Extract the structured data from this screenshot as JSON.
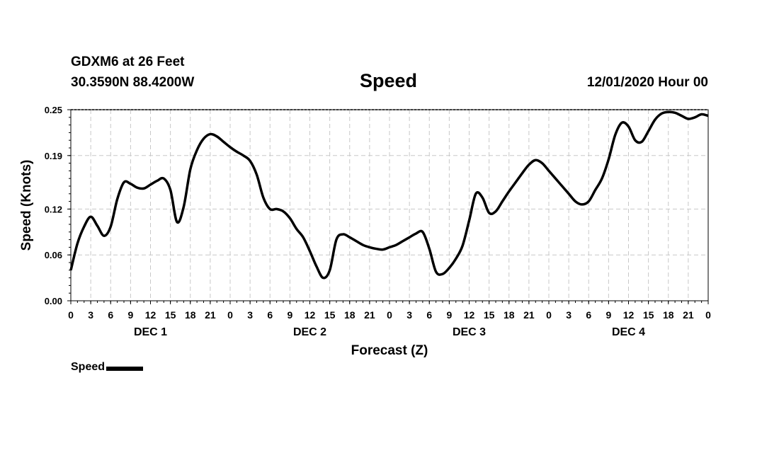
{
  "header": {
    "station": "GDXM6 at 26 Feet",
    "coords": "30.3590N 88.4200W",
    "title": "Speed",
    "datetime": "12/01/2020 Hour 00"
  },
  "legend": {
    "label": "Speed"
  },
  "chart_data": {
    "type": "line",
    "title": "Speed",
    "xlabel": "Forecast (Z)",
    "ylabel": "Speed (Knots)",
    "ylim": [
      0,
      0.25
    ],
    "yticks": [
      "0.00",
      "0.06",
      "0.12",
      "0.19",
      "0.25"
    ],
    "xlim": [
      0,
      96
    ],
    "xtick_labels": [
      "0",
      "3",
      "6",
      "9",
      "12",
      "15",
      "18",
      "21",
      "0",
      "3",
      "6",
      "9",
      "12",
      "15",
      "18",
      "21",
      "0",
      "3",
      "6",
      "9",
      "12",
      "15",
      "18",
      "21",
      "0",
      "3",
      "6",
      "9",
      "12",
      "15",
      "18",
      "21",
      "0"
    ],
    "day_labels": [
      {
        "label": "DEC 1",
        "hour": 12
      },
      {
        "label": "DEC 2",
        "hour": 36
      },
      {
        "label": "DEC 3",
        "hour": 60
      },
      {
        "label": "DEC 4",
        "hour": 84
      }
    ],
    "grid": true,
    "legend_position": "bottom-left",
    "series": [
      {
        "name": "Speed",
        "color": "#000000",
        "x": [
          0,
          1,
          2,
          3,
          4,
          5,
          6,
          7,
          8,
          9,
          10,
          11,
          12,
          13,
          14,
          15,
          16,
          17,
          18,
          19,
          20,
          21,
          22,
          23,
          24,
          25,
          26,
          27,
          28,
          29,
          30,
          31,
          32,
          33,
          34,
          35,
          36,
          37,
          38,
          39,
          40,
          41,
          42,
          43,
          44,
          45,
          46,
          47,
          48,
          49,
          50,
          51,
          52,
          53,
          54,
          55,
          56,
          57,
          58,
          59,
          60,
          61,
          62,
          63,
          64,
          65,
          66,
          67,
          68,
          69,
          70,
          71,
          72,
          73,
          74,
          75,
          76,
          77,
          78,
          79,
          80,
          81,
          82,
          83,
          84,
          85,
          86,
          87,
          88,
          89,
          90,
          91,
          92,
          93,
          94,
          95,
          96
        ],
        "y": [
          0.04,
          0.075,
          0.097,
          0.11,
          0.098,
          0.085,
          0.097,
          0.133,
          0.155,
          0.153,
          0.148,
          0.147,
          0.152,
          0.157,
          0.16,
          0.145,
          0.103,
          0.123,
          0.172,
          0.197,
          0.212,
          0.218,
          0.215,
          0.208,
          0.201,
          0.195,
          0.19,
          0.183,
          0.165,
          0.135,
          0.12,
          0.12,
          0.117,
          0.108,
          0.094,
          0.083,
          0.065,
          0.045,
          0.03,
          0.04,
          0.08,
          0.087,
          0.083,
          0.078,
          0.073,
          0.07,
          0.068,
          0.067,
          0.07,
          0.073,
          0.078,
          0.083,
          0.088,
          0.09,
          0.068,
          0.038,
          0.035,
          0.043,
          0.055,
          0.072,
          0.105,
          0.14,
          0.135,
          0.115,
          0.117,
          0.13,
          0.143,
          0.155,
          0.167,
          0.178,
          0.184,
          0.18,
          0.17,
          0.16,
          0.15,
          0.14,
          0.13,
          0.126,
          0.13,
          0.145,
          0.16,
          0.185,
          0.217,
          0.233,
          0.228,
          0.21,
          0.208,
          0.222,
          0.237,
          0.245,
          0.247,
          0.246,
          0.242,
          0.238,
          0.24,
          0.244,
          0.242
        ]
      }
    ]
  }
}
